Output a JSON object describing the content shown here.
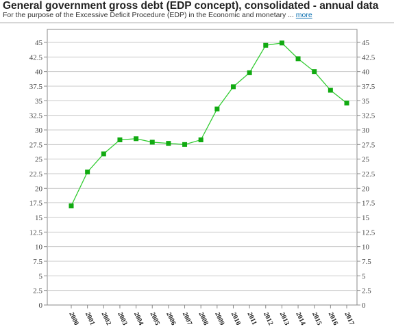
{
  "header": {
    "title": "General government gross debt (EDP concept), consolidated - annual data",
    "subtitle": "For the purpose of the Excessive Deficit Procedure (EDP) in the Economic and monetary ...",
    "more_label": "more"
  },
  "colors": {
    "line": "#33cc33",
    "marker": "#11aa11",
    "grid": "#c8c8c8",
    "axis": "#888888"
  },
  "chart_data": {
    "type": "line",
    "title": "",
    "xlabel": "",
    "ylabel": "",
    "ylim": [
      0,
      45
    ],
    "y_ticks": [
      0,
      2.5,
      5,
      7.5,
      10,
      12.5,
      15,
      17.5,
      20,
      22.5,
      25,
      27.5,
      30,
      32.5,
      35,
      37.5,
      40,
      42.5,
      45
    ],
    "y_axis_sides": "left-and-right",
    "grid": true,
    "legend": "none",
    "x": [
      "2000",
      "2001",
      "2002",
      "2003",
      "2004",
      "2005",
      "2006",
      "2007",
      "2008",
      "2009",
      "2010",
      "2011",
      "2012",
      "2013",
      "2014",
      "2015",
      "2016",
      "2017"
    ],
    "series": [
      {
        "values": [
          17.0,
          22.8,
          25.9,
          28.3,
          28.5,
          27.9,
          27.7,
          27.5,
          28.3,
          33.6,
          37.4,
          39.8,
          44.5,
          44.9,
          42.2,
          40.0,
          36.8,
          34.6
        ]
      }
    ]
  }
}
